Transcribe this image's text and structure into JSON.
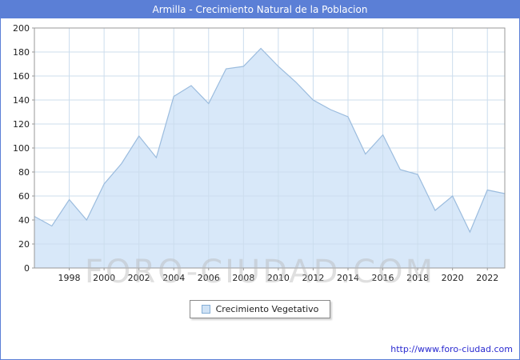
{
  "title": "Armilla - Crecimiento Natural de la Poblacion",
  "watermark": "FORO-CIUDAD.COM",
  "footer_link": "http://www.foro-ciudad.com",
  "legend": {
    "label": "Crecimiento Vegetativo"
  },
  "colors": {
    "titlebar_bg": "#5b7fd6",
    "titlebar_text": "#ffffff",
    "grid": "#ccddee",
    "axis": "#999999",
    "tick_text": "#222222",
    "area_fill": "#d8e8f9",
    "area_line": "#9bbcde",
    "link": "#2a2ad0",
    "watermark": "#bebebe"
  },
  "chart_data": {
    "type": "area",
    "title": "Armilla - Crecimiento Natural de la Poblacion",
    "legend": "Crecimiento Vegetativo",
    "x_start_year": 1996,
    "x": [
      1996,
      1997,
      1998,
      1999,
      2000,
      2001,
      2002,
      2003,
      2004,
      2005,
      2006,
      2007,
      2008,
      2009,
      2010,
      2011,
      2012,
      2013,
      2014,
      2015,
      2016,
      2017,
      2018,
      2019,
      2020,
      2021,
      2022,
      2023
    ],
    "values": [
      43,
      35,
      57,
      40,
      70,
      87,
      110,
      92,
      143,
      152,
      137,
      166,
      168,
      183,
      168,
      155,
      140,
      132,
      126,
      95,
      111,
      82,
      78,
      48,
      60,
      30,
      65,
      62
    ],
    "ylim": [
      0,
      200
    ],
    "ytick_step": 20,
    "xticks": [
      1998,
      2000,
      2002,
      2004,
      2006,
      2008,
      2010,
      2012,
      2014,
      2016,
      2018,
      2020,
      2022
    ],
    "grid": true,
    "legend_position": "bottom-center"
  }
}
